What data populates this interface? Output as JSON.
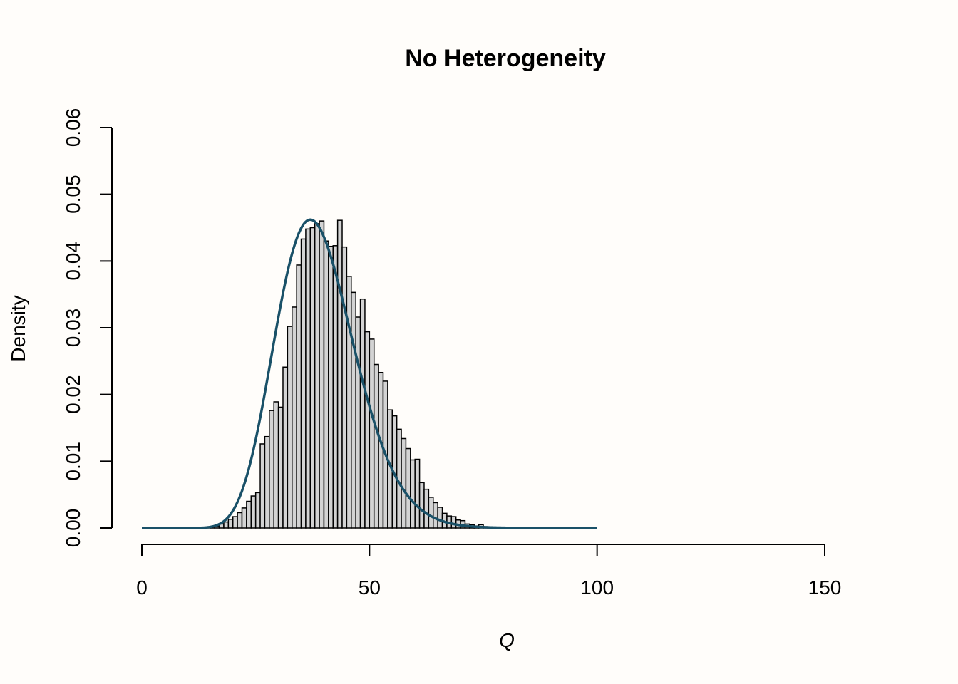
{
  "chart_data": {
    "type": "bar",
    "title": "No Heterogeneity",
    "xlabel": "Q",
    "ylabel": "Density",
    "xlim": [
      0,
      150
    ],
    "ylim": [
      0,
      0.06
    ],
    "x_ticks": [
      "0",
      "50",
      "100",
      "150"
    ],
    "y_ticks": [
      "0.00",
      "0.01",
      "0.02",
      "0.03",
      "0.04",
      "0.05",
      "0.06"
    ],
    "grid": false,
    "bin_width": 1,
    "bins": [
      [
        14,
        0.0001
      ],
      [
        15,
        0.0002
      ],
      [
        16,
        0.0003
      ],
      [
        17,
        0.0006
      ],
      [
        18,
        0.0009
      ],
      [
        19,
        0.0013
      ],
      [
        20,
        0.0017
      ],
      [
        21,
        0.0023
      ],
      [
        22,
        0.003
      ],
      [
        23,
        0.004
      ],
      [
        24,
        0.0048
      ],
      [
        25,
        0.0053
      ],
      [
        26,
        0.0126
      ],
      [
        27,
        0.0137
      ],
      [
        28,
        0.0176
      ],
      [
        29,
        0.0189
      ],
      [
        30,
        0.0181
      ],
      [
        31,
        0.0241
      ],
      [
        32,
        0.0302
      ],
      [
        33,
        0.0331
      ],
      [
        34,
        0.0394
      ],
      [
        35,
        0.0433
      ],
      [
        36,
        0.0448
      ],
      [
        37,
        0.045
      ],
      [
        38,
        0.0456
      ],
      [
        39,
        0.046
      ],
      [
        40,
        0.043
      ],
      [
        41,
        0.0422
      ],
      [
        42,
        0.0423
      ],
      [
        43,
        0.0461
      ],
      [
        44,
        0.0421
      ],
      [
        45,
        0.0377
      ],
      [
        46,
        0.0353
      ],
      [
        47,
        0.0316
      ],
      [
        48,
        0.0343
      ],
      [
        49,
        0.0294
      ],
      [
        50,
        0.0283
      ],
      [
        51,
        0.0245
      ],
      [
        52,
        0.0233
      ],
      [
        53,
        0.022
      ],
      [
        54,
        0.0177
      ],
      [
        55,
        0.0168
      ],
      [
        56,
        0.0148
      ],
      [
        57,
        0.0134
      ],
      [
        58,
        0.0119
      ],
      [
        59,
        0.0102
      ],
      [
        60,
        0.0103
      ],
      [
        61,
        0.0068
      ],
      [
        62,
        0.0058
      ],
      [
        63,
        0.0046
      ],
      [
        64,
        0.0038
      ],
      [
        65,
        0.0031
      ],
      [
        66,
        0.0022
      ],
      [
        67,
        0.0018
      ],
      [
        68,
        0.0017
      ],
      [
        69,
        0.0012
      ],
      [
        70,
        0.0011
      ],
      [
        71,
        0.0006
      ],
      [
        72,
        0.0005
      ],
      [
        73,
        0.0003
      ],
      [
        74,
        0.0005
      ],
      [
        75,
        0.0002
      ],
      [
        76,
        0.0001
      ]
    ],
    "curve": {
      "x_range": [
        0,
        100
      ],
      "peak_x": 37,
      "peak_y": 0.0462,
      "color": "#1a5168"
    },
    "colors": {
      "bar_fill": "#d3d3d3",
      "bar_stroke": "#000000",
      "background": "#fffdfa"
    }
  }
}
